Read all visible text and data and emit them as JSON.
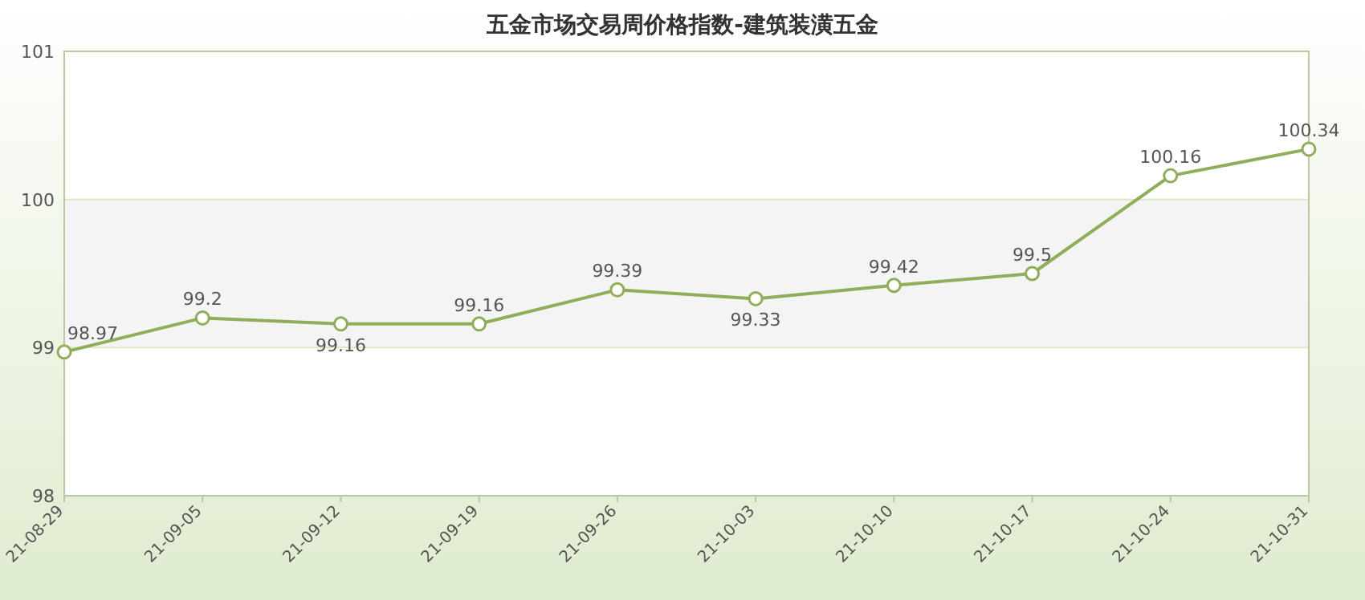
{
  "chart_data": {
    "type": "line",
    "title": "五金市场交易周价格指数-建筑装潢五金",
    "categories": [
      "21-08-29",
      "21-09-05",
      "21-09-12",
      "21-09-19",
      "21-09-26",
      "21-10-03",
      "21-10-10",
      "21-10-17",
      "21-10-24",
      "21-10-31"
    ],
    "series": [
      {
        "color": "#8fae5a",
        "values": [
          98.97,
          99.2,
          99.16,
          99.16,
          99.39,
          99.33,
          99.42,
          99.5,
          100.16,
          100.34
        ]
      }
    ],
    "ylim": [
      98,
      101
    ],
    "yticks": [
      98,
      99,
      100,
      101
    ],
    "grid": "y",
    "marker": "circle",
    "line_style": "solid",
    "data_labels": true,
    "bands": [
      {
        "axis": "y",
        "from": 99,
        "to": 100,
        "color": "#f4f4f4"
      }
    ]
  }
}
